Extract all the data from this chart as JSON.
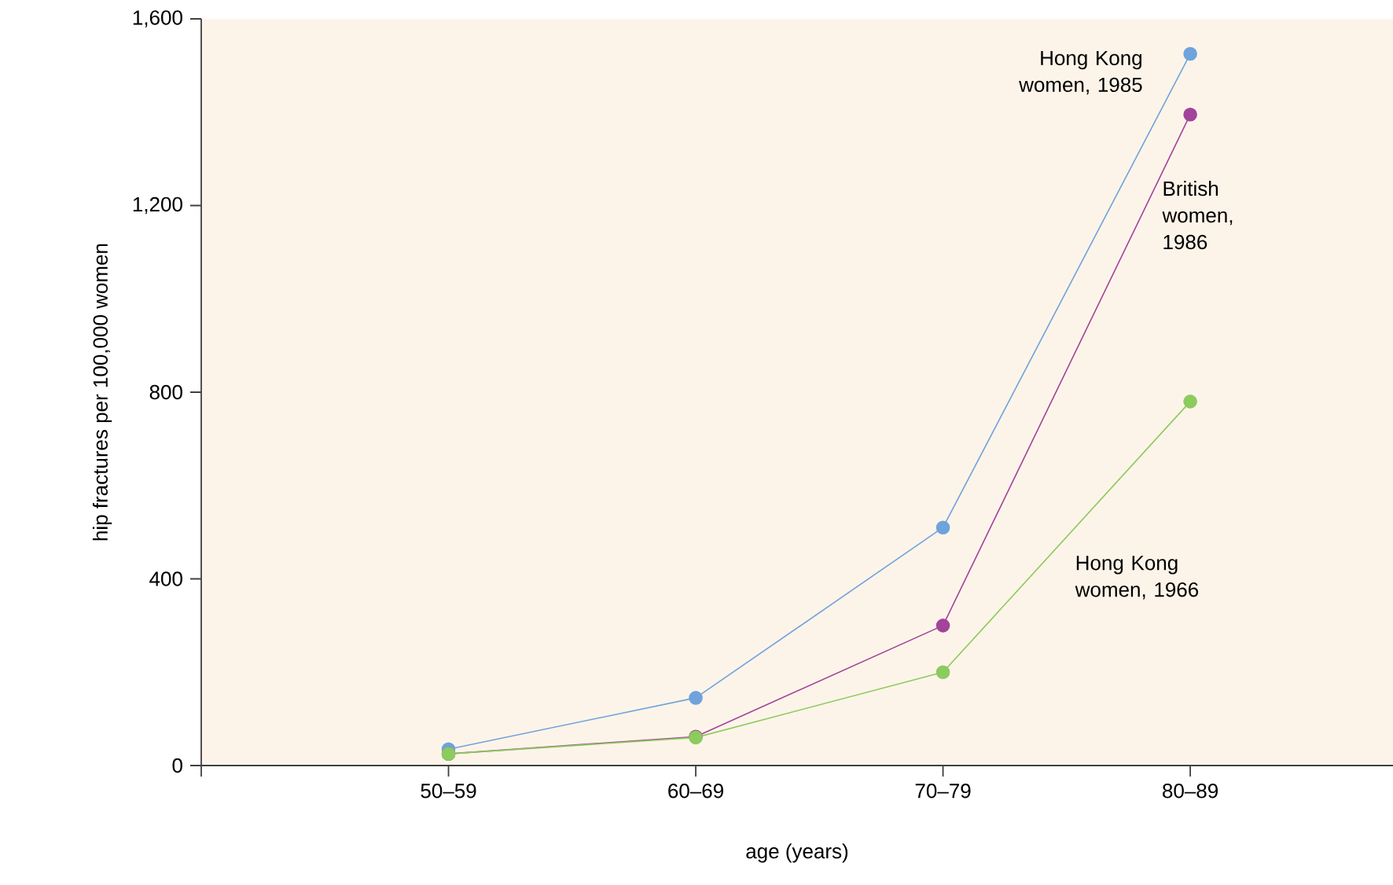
{
  "chart_data": {
    "type": "line",
    "xlabel": "age (years)",
    "ylabel": "hip fractures per 100,000 women",
    "categories": [
      "50–59",
      "60–69",
      "70–79",
      "80–89"
    ],
    "series": [
      {
        "name": "Hong Kong women, 1985",
        "color": "#6fa3db",
        "values": [
          35,
          145,
          510,
          1525
        ]
      },
      {
        "name": "British women, 1986",
        "color": "#a3439b",
        "values": [
          25,
          62,
          300,
          1395
        ]
      },
      {
        "name": "Hong Kong women, 1966",
        "color": "#8ccb5e",
        "values": [
          25,
          60,
          200,
          780
        ]
      }
    ],
    "ylim": [
      0,
      1600
    ],
    "yticks": [
      0,
      400,
      800,
      {
        "value": 1200,
        "label": "1,200"
      },
      {
        "value": 1600,
        "label": "1,600"
      }
    ],
    "marker": "circle",
    "line_style": "solid",
    "grid": false,
    "legend": false
  }
}
